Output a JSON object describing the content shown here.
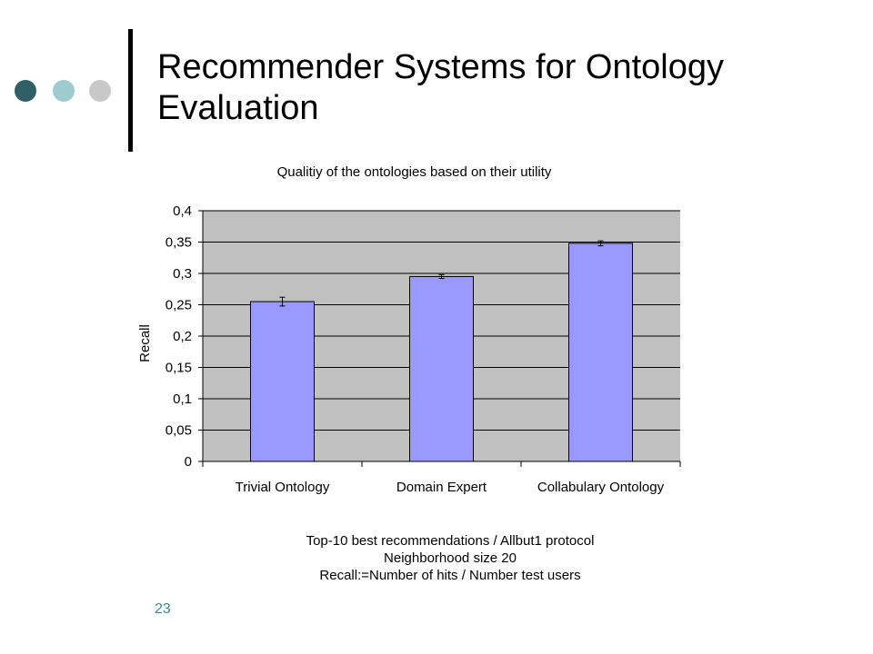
{
  "slide": {
    "title": "Recommender Systems for Ontology Evaluation",
    "number": "23",
    "bullet_colors": [
      "#2f6068",
      "#9dcbd0",
      "#c8c8c8"
    ],
    "caption_lines": [
      "Top-10 best recommendations / Allbut1 protocol",
      "Neighborhood size 20",
      "Recall:=Number of hits / Number test users"
    ]
  },
  "chart_data": {
    "type": "bar",
    "title": "Qualitiy of the ontologies based on their utility",
    "xlabel": "",
    "ylabel": "Recall",
    "categories": [
      "Trivial Ontology",
      "Domain Expert",
      "Collabulary Ontology"
    ],
    "values": [
      0.255,
      0.295,
      0.348
    ],
    "error": [
      0.007,
      0.003,
      0.004
    ],
    "ylim": [
      0,
      0.4
    ],
    "yticks": [
      0,
      0.05,
      0.1,
      0.15,
      0.2,
      0.25,
      0.3,
      0.35,
      0.4
    ],
    "ytick_labels": [
      "0",
      "0,05",
      "0,1",
      "0,15",
      "0,2",
      "0,25",
      "0,3",
      "0,35",
      "0,4"
    ],
    "grid": true,
    "legend": "none",
    "colors": {
      "bar": "#9999ff",
      "plot_background": "#c0c0c0",
      "gridline": "#000000"
    }
  }
}
